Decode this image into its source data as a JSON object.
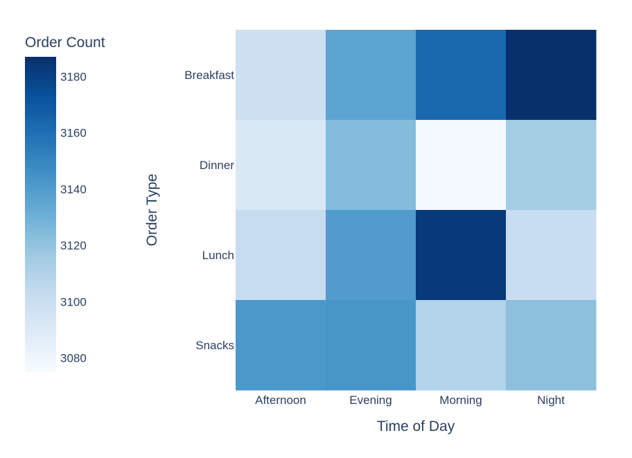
{
  "chart_data": {
    "type": "heatmap",
    "xlabel": "Time of Day",
    "ylabel": "Order Type",
    "x": [
      "Afternoon",
      "Evening",
      "Morning",
      "Night"
    ],
    "y": [
      "Breakfast",
      "Dinner",
      "Lunch",
      "Snacks"
    ],
    "z": [
      [
        3099,
        3136,
        3163,
        3187
      ],
      [
        3092,
        3124,
        3077,
        3115
      ],
      [
        3102,
        3140,
        3183,
        3101
      ],
      [
        3142,
        3143,
        3110,
        3122
      ]
    ],
    "colorbar": {
      "title": "Order Count",
      "range": [
        3075,
        3187
      ],
      "ticks": [
        3080,
        3100,
        3120,
        3140,
        3160,
        3180
      ],
      "tick_labels": [
        "3080",
        "3100",
        "3120",
        "3140",
        "3160",
        "3180"
      ]
    },
    "colorscale": [
      "#f7fbff",
      "#deebf7",
      "#c6dbef",
      "#9ecae1",
      "#6baed6",
      "#4292c6",
      "#2171b5",
      "#08519c",
      "#08306b"
    ]
  }
}
